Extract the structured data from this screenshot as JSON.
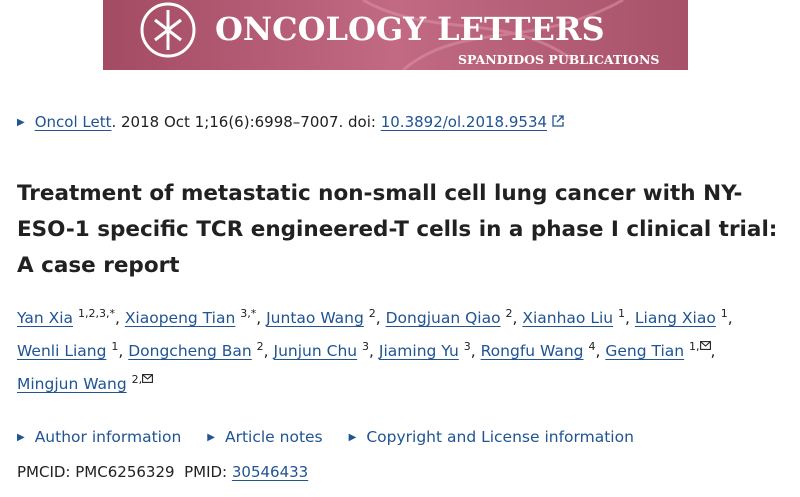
{
  "banner": {
    "title": "ONCOLOGY LETTERS",
    "publisher": "SPANDIDOS PUBLICATIONS"
  },
  "citation": {
    "journal": "Oncol Lett",
    "details": ". 2018 Oct 1;16(6):6998–7007. doi: ",
    "doi": "10.3892/ol.2018.9534"
  },
  "article_title": "Treatment of metastatic non-small cell lung cancer with NY-ESO-1 specific TCR engineered-T cells in a phase I clinical trial: A case report",
  "author_separator": ", ",
  "authors": [
    {
      "name": "Yan Xia",
      "affiliations": "1,2,3,*",
      "corresponding": false
    },
    {
      "name": "Xiaopeng Tian",
      "affiliations": "3,*",
      "corresponding": false
    },
    {
      "name": "Juntao Wang",
      "affiliations": "2",
      "corresponding": false
    },
    {
      "name": "Dongjuan Qiao",
      "affiliations": "2",
      "corresponding": false
    },
    {
      "name": "Xianhao Liu",
      "affiliations": "1",
      "corresponding": false
    },
    {
      "name": "Liang Xiao",
      "affiliations": "1",
      "corresponding": false
    },
    {
      "name": "Wenli Liang",
      "affiliations": "1",
      "corresponding": false
    },
    {
      "name": "Dongcheng Ban",
      "affiliations": "2",
      "corresponding": false
    },
    {
      "name": "Junjun Chu",
      "affiliations": "3",
      "corresponding": false
    },
    {
      "name": "Jiaming Yu",
      "affiliations": "3",
      "corresponding": false
    },
    {
      "name": "Rongfu Wang",
      "affiliations": "4",
      "corresponding": false
    },
    {
      "name": "Geng Tian",
      "affiliations": "1,",
      "corresponding": true
    },
    {
      "name": "Mingjun Wang",
      "affiliations": "2,",
      "corresponding": true
    }
  ],
  "sections": [
    "Author information",
    "Article notes",
    "Copyright and License information"
  ],
  "ids": {
    "pmcid_label": "PMCID: ",
    "pmcid": "PMC6256329",
    "pmid_label": "PMID: ",
    "pmid": "30546433"
  }
}
